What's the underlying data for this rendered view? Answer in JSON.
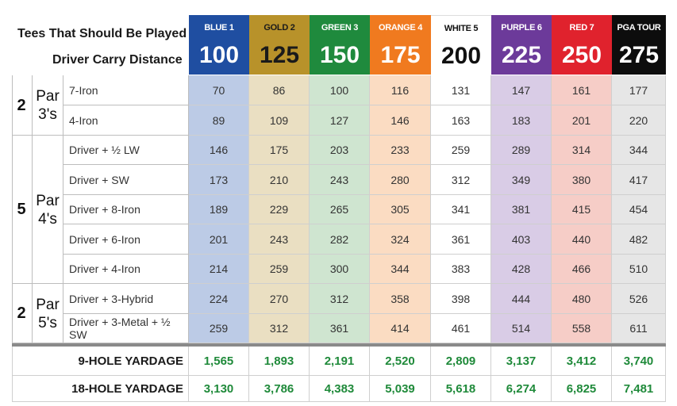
{
  "header": {
    "tees_label": "Tees That Should Be Played",
    "carry_label": "Driver Carry Distance"
  },
  "tees": [
    {
      "name": "BLUE 1",
      "distance": "100",
      "header_bg": "#1f4ea1",
      "header_fg": "#ffffff",
      "cell_bg": "#bccbe6"
    },
    {
      "name": "GOLD 2",
      "distance": "125",
      "header_bg": "#b8922a",
      "header_fg": "#1a1a1a",
      "cell_bg": "#eadfc2"
    },
    {
      "name": "GREEN 3",
      "distance": "150",
      "header_bg": "#1f8a3d",
      "header_fg": "#ffffff",
      "cell_bg": "#cfe5d0"
    },
    {
      "name": "ORANGE 4",
      "distance": "175",
      "header_bg": "#f07a1f",
      "header_fg": "#ffffff",
      "cell_bg": "#fbdcc2"
    },
    {
      "name": "WHITE 5",
      "distance": "200",
      "header_bg": "#ffffff",
      "header_fg": "#111111",
      "cell_bg": "#ffffff"
    },
    {
      "name": "PURPLE 6",
      "distance": "225",
      "header_bg": "#6c3a9a",
      "header_fg": "#ffffff",
      "cell_bg": "#d9cce6"
    },
    {
      "name": "RED 7",
      "distance": "250",
      "header_bg": "#e0222d",
      "header_fg": "#ffffff",
      "cell_bg": "#f6cdc7"
    },
    {
      "name": "PGA TOUR",
      "distance": "275",
      "header_bg": "#0d0d0d",
      "header_fg": "#ffffff",
      "cell_bg": "#e6e6e6"
    }
  ],
  "groups": [
    {
      "count": "2",
      "par_line1": "Par",
      "par_line2": "3's",
      "rows": [
        {
          "club": "7-Iron",
          "values": [
            "70",
            "86",
            "100",
            "116",
            "131",
            "147",
            "161",
            "177"
          ]
        },
        {
          "club": "4-Iron",
          "values": [
            "89",
            "109",
            "127",
            "146",
            "163",
            "183",
            "201",
            "220"
          ]
        }
      ]
    },
    {
      "count": "5",
      "par_line1": "Par",
      "par_line2": "4's",
      "rows": [
        {
          "club": "Driver + ½ LW",
          "values": [
            "146",
            "175",
            "203",
            "233",
            "259",
            "289",
            "314",
            "344"
          ]
        },
        {
          "club": "Driver + SW",
          "values": [
            "173",
            "210",
            "243",
            "280",
            "312",
            "349",
            "380",
            "417"
          ]
        },
        {
          "club": "Driver + 8-Iron",
          "values": [
            "189",
            "229",
            "265",
            "305",
            "341",
            "381",
            "415",
            "454"
          ]
        },
        {
          "club": "Driver + 6-Iron",
          "values": [
            "201",
            "243",
            "282",
            "324",
            "361",
            "403",
            "440",
            "482"
          ]
        },
        {
          "club": "Driver + 4-Iron",
          "values": [
            "214",
            "259",
            "300",
            "344",
            "383",
            "428",
            "466",
            "510"
          ]
        }
      ]
    },
    {
      "count": "2",
      "par_line1": "Par",
      "par_line2": "5's",
      "rows": [
        {
          "club": "Driver + 3-Hybrid",
          "values": [
            "224",
            "270",
            "312",
            "358",
            "398",
            "444",
            "480",
            "526"
          ]
        },
        {
          "club": "Driver + 3-Metal + ½ SW",
          "values": [
            "259",
            "312",
            "361",
            "414",
            "461",
            "514",
            "558",
            "611"
          ]
        }
      ]
    }
  ],
  "totals": [
    {
      "label": "9-HOLE YARDAGE",
      "values": [
        "1,565",
        "1,893",
        "2,191",
        "2,520",
        "2,809",
        "3,137",
        "3,412",
        "3,740"
      ]
    },
    {
      "label": "18-HOLE YARDAGE",
      "values": [
        "3,130",
        "3,786",
        "4,383",
        "5,039",
        "5,618",
        "6,274",
        "6,825",
        "7,481"
      ]
    }
  ],
  "colors": {
    "total_text": "#1f8a3a",
    "separator": "#8a8a8a"
  }
}
